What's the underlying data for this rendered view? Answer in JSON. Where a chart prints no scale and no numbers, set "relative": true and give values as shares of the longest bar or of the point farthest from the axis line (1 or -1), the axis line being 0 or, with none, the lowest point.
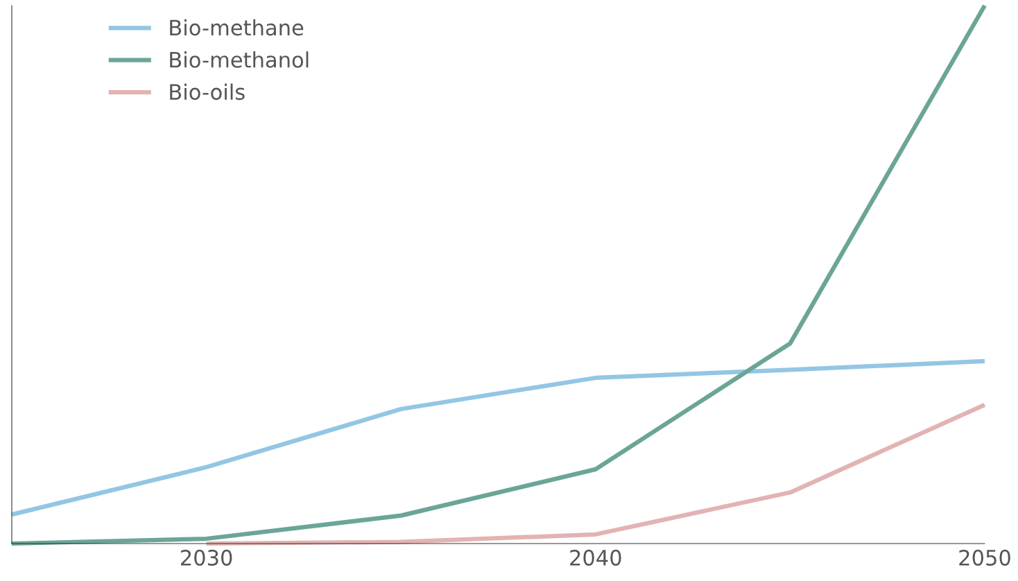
{
  "chart_data": {
    "type": "line",
    "relative": true,
    "x": [
      2025,
      2030,
      2035,
      2040,
      2045,
      2050
    ],
    "xlim": [
      2025,
      2050
    ],
    "xticks": [
      2030,
      2040,
      2050
    ],
    "legend": "top left",
    "grid": false,
    "series": [
      {
        "name": "Bio-methane",
        "color": "#93c6e3",
        "values": [
          0.054,
          0.142,
          0.25,
          0.308,
          0.323,
          0.339
        ]
      },
      {
        "name": "Bio-methanol",
        "color": "#6ba597",
        "values": [
          0,
          0.009,
          0.052,
          0.138,
          0.372,
          1
        ]
      },
      {
        "name": "Bio-oils",
        "color": "#e3b3b3",
        "values": [
          null,
          0,
          0.003,
          0.017,
          0.095,
          0.258
        ]
      }
    ]
  }
}
